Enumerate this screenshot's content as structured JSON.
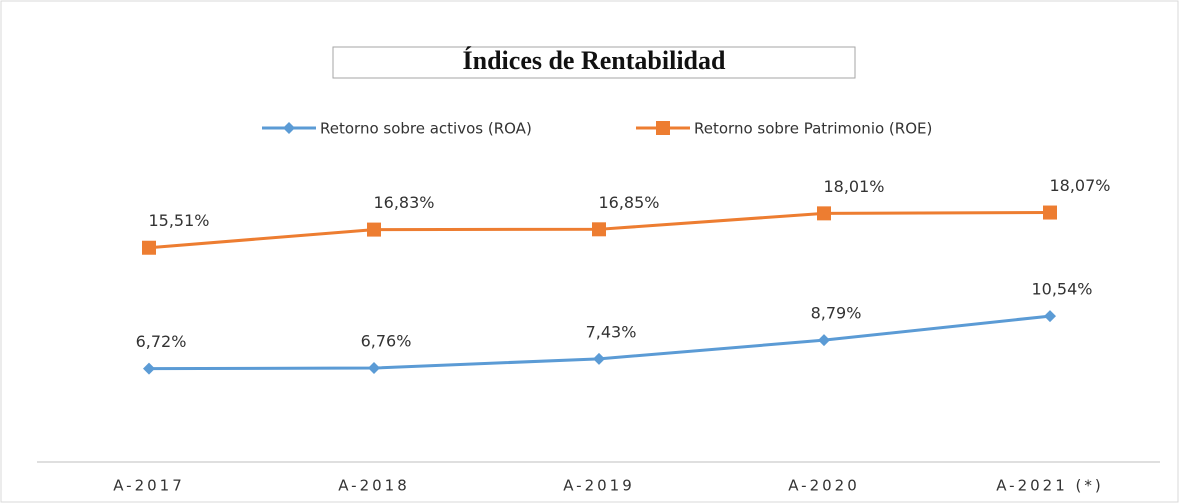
{
  "chart_data": {
    "type": "line",
    "title": "Índices de Rentabilidad",
    "categories": [
      "A-2017",
      "A-2018",
      "A-2019",
      "A-2020",
      "A-2021 (*)"
    ],
    "ylim": [
      0,
      20
    ],
    "series": [
      {
        "name": "Retorno sobre activos (ROA)",
        "color": "#5b9bd5",
        "marker": "diamond",
        "values": [
          6.72,
          6.76,
          7.43,
          8.79,
          10.54
        ],
        "value_labels": [
          "6,72%",
          "6,76%",
          "7,43%",
          "8,79%",
          "10,54%"
        ]
      },
      {
        "name": "Retorno sobre Patrimonio (ROE)",
        "color": "#ed7d31",
        "marker": "square",
        "values": [
          15.51,
          16.83,
          16.85,
          18.01,
          18.07
        ],
        "value_labels": [
          "15,51%",
          "16,83%",
          "16,85%",
          "18,01%",
          "18,07%"
        ]
      }
    ],
    "legend": "top"
  }
}
